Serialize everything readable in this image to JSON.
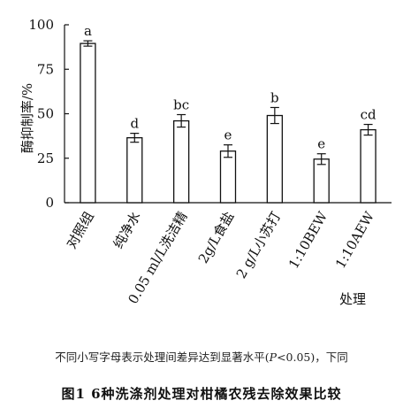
{
  "chart_data": {
    "type": "bar",
    "categories": [
      "对照组",
      "纯净水",
      "0.05 ml/L洗洁精",
      "2g/L食盐",
      "2 g/L小苏打",
      "1:10BEW",
      "1:10AEW"
    ],
    "values": [
      89.5,
      36.5,
      46,
      29,
      49,
      24.5,
      41
    ],
    "errors": [
      1.5,
      2.5,
      3.5,
      3.5,
      4.5,
      3,
      3
    ],
    "significance_letters": [
      "a",
      "d",
      "bc",
      "e",
      "b",
      "e",
      "cd"
    ],
    "ylabel": "酶抑制率/%",
    "xlabel": "处理",
    "ylim": [
      0,
      100
    ],
    "yticks": [
      0,
      25,
      50,
      75,
      100
    ],
    "grid": false,
    "colors": {
      "bar_fill": "#ffffff",
      "bar_stroke": "#111111",
      "axis": "#111111"
    }
  },
  "note": {
    "prefix": "不同小写字母表示处理间差异达到显著水平(",
    "p_symbol": "P",
    "suffix": "<0.05)，下同"
  },
  "caption": "图1 6种洗涤剂处理对柑橘农残去除效果比较"
}
